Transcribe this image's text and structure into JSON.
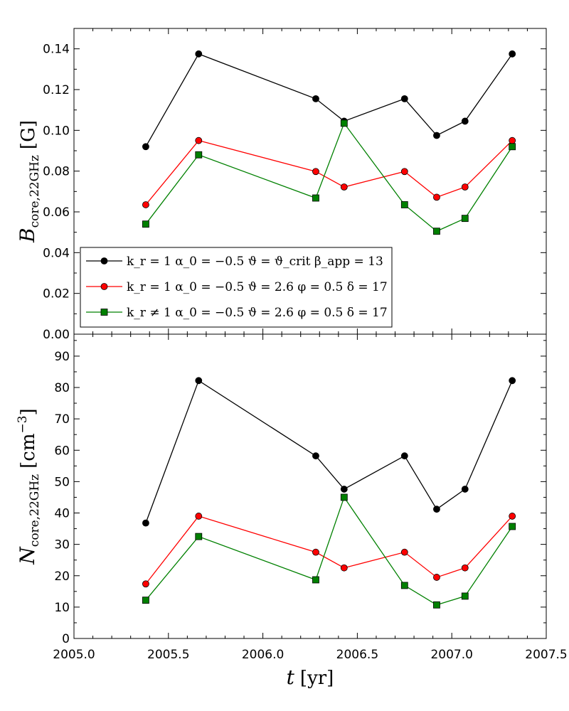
{
  "chart_data": [
    {
      "type": "line",
      "panel": "top",
      "ylabel": "B_core,22GHz [G]",
      "ylabel_parts": {
        "symbol": "B",
        "subscript": "core,22GHz",
        "unit": "[G]"
      },
      "xlim": [
        2005.0,
        2007.5
      ],
      "ylim": [
        0.0,
        0.15
      ],
      "yticks": [
        0.0,
        0.02,
        0.04,
        0.06,
        0.08,
        0.1,
        0.12,
        0.14
      ],
      "ytick_labels": [
        "0.00",
        "0.02",
        "0.04",
        "0.06",
        "0.08",
        "0.10",
        "0.12",
        "0.14"
      ],
      "legend": {
        "location": "lower-left",
        "entries": [
          {
            "label": "k_r = 1 α_0 = −0.5 ϑ = ϑ_crit β_app = 13",
            "color": "#000000",
            "marker": "circle"
          },
          {
            "label": "k_r = 1 α_0 = −0.5 ϑ = 2.6 φ = 0.5 δ = 17",
            "color": "#ff0000",
            "marker": "circle"
          },
          {
            "label": "k_r ≠ 1 α_0 = −0.5 ϑ = 2.6 φ = 0.5 δ = 17",
            "color": "#008000",
            "marker": "square"
          }
        ]
      },
      "x": [
        2005.38,
        2005.66,
        2006.28,
        2006.43,
        2006.75,
        2006.92,
        2007.07,
        2007.32
      ],
      "series": [
        {
          "name": "black",
          "color": "#000000",
          "marker": "circle",
          "values": [
            0.092,
            0.1375,
            0.1155,
            0.1045,
            0.1155,
            0.0975,
            0.1045,
            0.1375
          ]
        },
        {
          "name": "red",
          "color": "#ff0000",
          "marker": "circle",
          "values": [
            0.0635,
            0.095,
            0.0798,
            0.0722,
            0.0798,
            0.0672,
            0.0722,
            0.095
          ]
        },
        {
          "name": "green",
          "color": "#008000",
          "marker": "square",
          "values": [
            0.054,
            0.088,
            0.0668,
            0.1035,
            0.0635,
            0.0505,
            0.0568,
            0.092
          ]
        }
      ]
    },
    {
      "type": "line",
      "panel": "bottom",
      "ylabel": "N_core,22GHz [cm^-3]",
      "ylabel_parts": {
        "symbol": "N",
        "subscript": "core,22GHz",
        "unit": "[cm",
        "exponent": "−3",
        "close": "]"
      },
      "xlabel": "t [yr]",
      "xlabel_parts": {
        "symbol": "t",
        "unit": "[yr]"
      },
      "xlim": [
        2005.0,
        2007.5
      ],
      "ylim": [
        0,
        97
      ],
      "xticks": [
        2005.0,
        2005.5,
        2006.0,
        2006.5,
        2007.0,
        2007.5
      ],
      "xtick_labels": [
        "2005.0",
        "2005.5",
        "2006.0",
        "2006.5",
        "2007.0",
        "2007.5"
      ],
      "yticks": [
        0,
        10,
        20,
        30,
        40,
        50,
        60,
        70,
        80,
        90
      ],
      "ytick_labels": [
        "0",
        "10",
        "20",
        "30",
        "40",
        "50",
        "60",
        "70",
        "80",
        "90"
      ],
      "x": [
        2005.38,
        2005.66,
        2006.28,
        2006.43,
        2006.75,
        2006.92,
        2007.07,
        2007.32
      ],
      "series": [
        {
          "name": "black",
          "color": "#000000",
          "marker": "circle",
          "values": [
            36.8,
            82.2,
            58.2,
            47.6,
            58.2,
            41.2,
            47.6,
            82.2
          ]
        },
        {
          "name": "red",
          "color": "#ff0000",
          "marker": "circle",
          "values": [
            17.4,
            39.0,
            27.5,
            22.5,
            27.5,
            19.5,
            22.5,
            39.0
          ]
        },
        {
          "name": "green",
          "color": "#008000",
          "marker": "square",
          "values": [
            12.2,
            32.5,
            18.7,
            45.0,
            16.9,
            10.7,
            13.5,
            35.7
          ]
        }
      ]
    }
  ]
}
